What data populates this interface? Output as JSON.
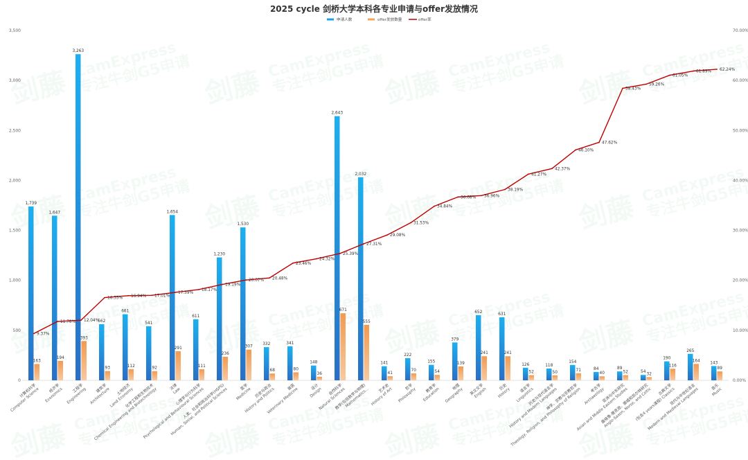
{
  "watermark": {
    "line1": "剑藤",
    "line2": "CamExpress",
    "line3": "专注牛剑G5申请"
  },
  "chart_data": {
    "type": "bar",
    "title": "2025 cycle 剑桥大学本科各专业申请与offer发放情况",
    "legend_position": "top-center",
    "grid": false,
    "y_left": {
      "range": [
        0,
        3500
      ],
      "ticks": [
        "0",
        "500",
        "1,000",
        "1,500",
        "2,000",
        "2,500",
        "3,000",
        "3,500"
      ]
    },
    "y_right": {
      "range": [
        0,
        70
      ],
      "ticks": [
        "0.00%",
        "10.00%",
        "20.00%",
        "30.00%",
        "40.00%",
        "50.00%",
        "60.00%",
        "70.00%"
      ]
    },
    "categories": [
      "计算机科学 Computer Science",
      "经济学 Economics",
      "工程学 Engineering",
      "建筑学 Architecture",
      "土地经济 Land Economy",
      "化学工程和生物技术 Chemical Engineering and Biotechnology",
      "法律 Law",
      "心理学与行为科学 Psychological and Behavioural Sciences",
      "人类、社会和政治科学(HSPS) Human, Social, and Political Sciences",
      "医学 Medicine",
      "历史与政治 History and Politics",
      "兽医 Veterinary Medicine",
      "设计 Design",
      "自然科学 Natural Sciences",
      "数学(包括数学与物理) Mathematics...",
      "艺术史 History of Art",
      "哲学 Philosophy",
      "教育学 Education",
      "地理 Geography",
      "英文文学 English",
      "历史 History",
      "语言学 Linguistics",
      "历史与现代语言学 History and Modern Languages",
      "神学、宗教与宗教哲学 Theology, Religion, and Philosophy of Religion",
      "考古学 Archaeology",
      "亚洲与中东研究 Asian and Middle Eastern Studies",
      "盎格鲁-撒克逊、挪威和凯尔特研究 Anglo-Saxon, Norse, and Celtic",
      "古典文学 (包含4 years课程) Classics",
      "现代与中世纪语言 Modern and Medieval Languages",
      "音乐 Music"
    ],
    "series": [
      {
        "name": "申请人数",
        "type": "bar",
        "axis": "left",
        "color": "#1aa3e8",
        "values": [
          1739,
          1647,
          3263,
          562,
          661,
          541,
          1654,
          611,
          1230,
          1530,
          332,
          341,
          148,
          2643,
          2032,
          141,
          222,
          155,
          379,
          652,
          631,
          126,
          118,
          154,
          84,
          89,
          54,
          190,
          265,
          143
        ],
        "labels": [
          "1,739",
          "1,647",
          "3,263",
          "562",
          "661",
          "541",
          "1,654",
          "611",
          "1,230",
          "1,530",
          "332",
          "341",
          "148",
          "2,643",
          "2,032",
          "141",
          "222",
          "155",
          "379",
          "652",
          "631",
          "126",
          "118",
          "154",
          "84",
          "89",
          "54",
          "190",
          "265",
          "143"
        ]
      },
      {
        "name": "offer发放数量",
        "type": "bar",
        "axis": "left",
        "color": "#f5a25d",
        "values": [
          163,
          194,
          393,
          93,
          112,
          92,
          291,
          111,
          236,
          307,
          68,
          80,
          36,
          671,
          555,
          41,
          70,
          54,
          139,
          241,
          241,
          52,
          50,
          71,
          40,
          52,
          32,
          116,
          164,
          89
        ],
        "labels": [
          "163",
          "194",
          "393",
          "93",
          "112",
          "92",
          "291",
          "111",
          "236",
          "307",
          "68",
          "80",
          "36",
          "671",
          "555",
          "41",
          "70",
          "54",
          "139",
          "241",
          "241",
          "52",
          "50",
          "71",
          "40",
          "52",
          "32",
          "116",
          "164",
          "89"
        ]
      },
      {
        "name": "offer率",
        "type": "line",
        "axis": "right",
        "color": "#c00000",
        "values": [
          9.37,
          11.78,
          12.04,
          16.55,
          16.94,
          17.01,
          17.59,
          18.17,
          19.19,
          20.07,
          20.48,
          23.46,
          24.32,
          25.39,
          27.31,
          29.08,
          31.53,
          34.84,
          36.68,
          36.96,
          38.19,
          41.27,
          42.37,
          46.1,
          47.62,
          58.43,
          59.26,
          61.05,
          61.89,
          62.24
        ],
        "labels": [
          "9.37%",
          "11.78%",
          "12.04%",
          "16.55%",
          "16.94%",
          "17.01%",
          "17.59%",
          "18.17%",
          "19.19%",
          "20.07%",
          "20.48%",
          "23.46%",
          "24.32%",
          "25.39%",
          "27.31%",
          "29.08%",
          "31.53%",
          "34.84%",
          "36.68%",
          "36.96%",
          "38.19%",
          "41.27%",
          "42.37%",
          "46.10%",
          "47.62%",
          "58.43%",
          "59.26%",
          "61.05%",
          "61.89%",
          "62.24%"
        ]
      }
    ]
  }
}
